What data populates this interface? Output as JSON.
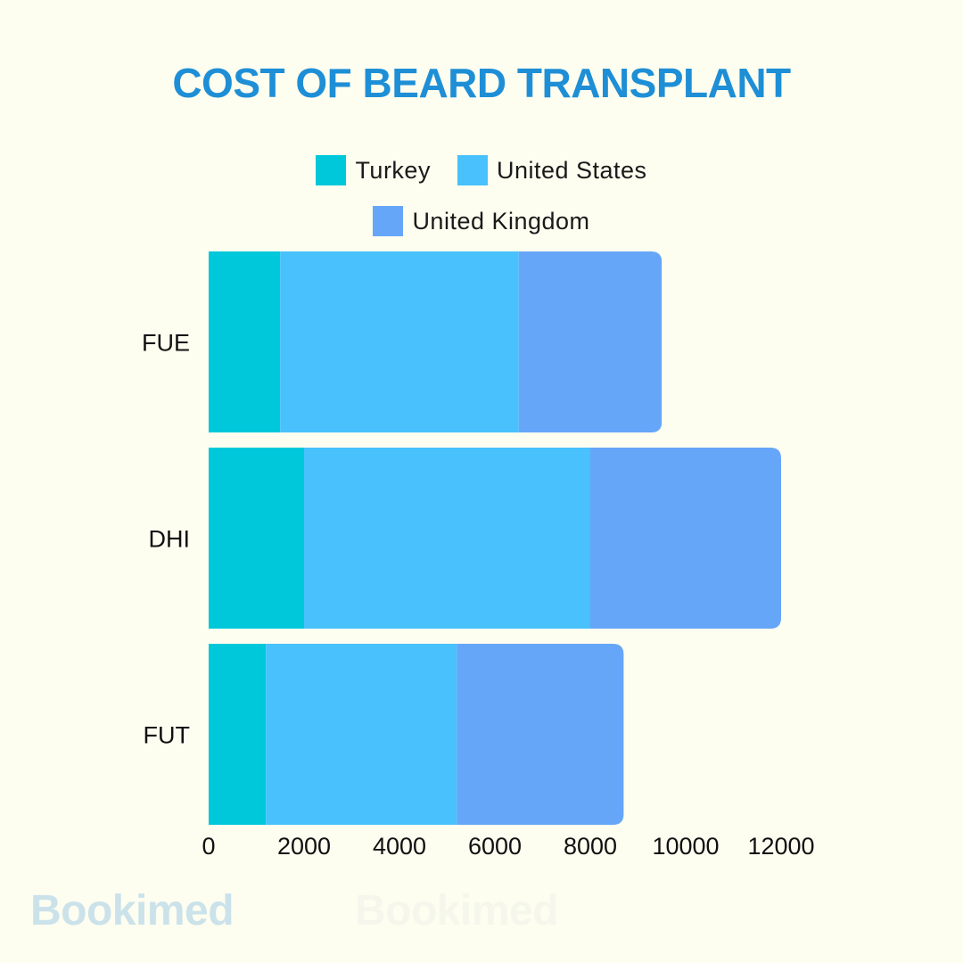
{
  "watermarks": [
    "Bookimed",
    "Bookimed"
  ],
  "chart_data": {
    "type": "bar",
    "orientation": "horizontal",
    "stacked": true,
    "title": "COST OF BEARD TRANSPLANT",
    "categories": [
      "FUE",
      "DHI",
      "FUT"
    ],
    "series": [
      {
        "name": "Turkey",
        "color": "#00c8db",
        "values": [
          1500,
          2000,
          1200
        ]
      },
      {
        "name": "United States",
        "color": "#48c1fd",
        "values": [
          5000,
          6000,
          4000
        ]
      },
      {
        "name": "United Kingdom",
        "color": "#66a6f9",
        "values": [
          3000,
          4000,
          3500
        ]
      }
    ],
    "xlim": [
      0,
      12000
    ],
    "xticks": [
      "0",
      "2000",
      "4000",
      "6000",
      "8000",
      "10000",
      "12000"
    ],
    "xlabel": "",
    "ylabel": "",
    "legend_position": "top-center",
    "grid": false
  }
}
